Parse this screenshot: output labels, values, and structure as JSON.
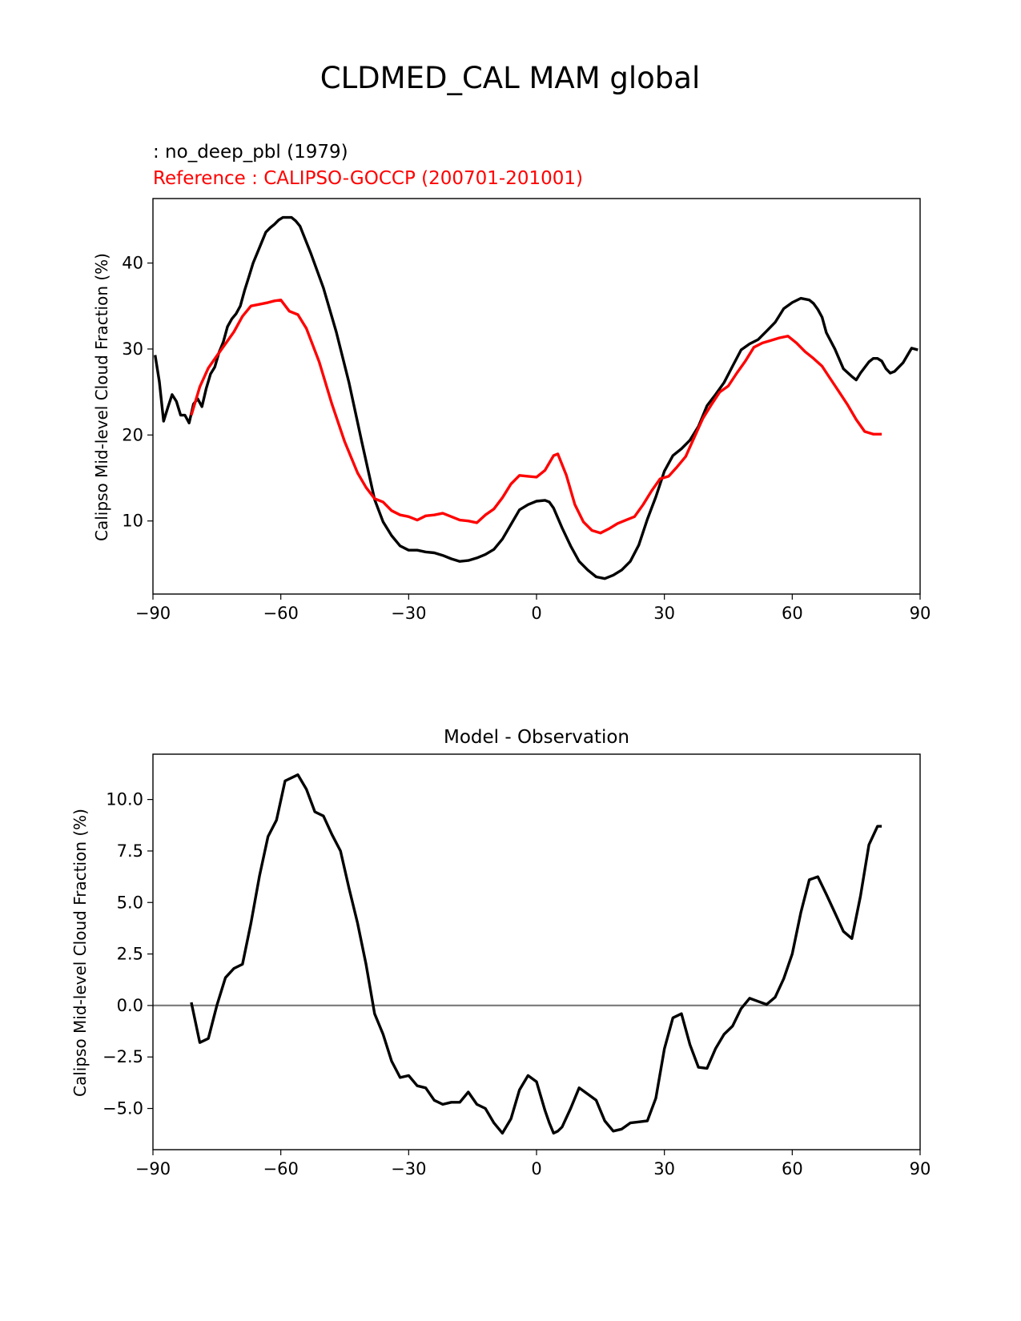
{
  "figure": {
    "title": "CLDMED_CAL MAM global",
    "model_label": " : no_deep_pbl (1979)",
    "reference_label": "Reference : CALIPSO-GOCCP (200701-201001)",
    "colors": {
      "model": "#000000",
      "reference": "#ff0000",
      "zero_line": "#808080"
    }
  },
  "chart_data": [
    {
      "type": "line",
      "title": "",
      "xlabel": "",
      "ylabel": "Calipso Mid-level Cloud Fraction (%)",
      "xlim": [
        -90,
        90
      ],
      "ylim": [
        1.5,
        47.5
      ],
      "xticks": [
        -90,
        -60,
        -30,
        0,
        30,
        60,
        90
      ],
      "xtick_labels": [
        "−90",
        "−60",
        "−30",
        "0",
        "30",
        "60",
        "90"
      ],
      "yticks": [
        10,
        20,
        30,
        40
      ],
      "ytick_labels": [
        "10",
        "20",
        "30",
        "40"
      ],
      "series": [
        {
          "name": "no_deep_pbl (1979)",
          "color": "#000000",
          "x": [
            -89.5,
            -88.5,
            -87.5,
            -86.5,
            -85.5,
            -84.5,
            -83.5,
            -82.5,
            -81.5,
            -80.5,
            -79.5,
            -78.5,
            -77.5,
            -76.5,
            -75.5,
            -74.5,
            -73.5,
            -72.5,
            -71.5,
            -70.5,
            -69.5,
            -68.5,
            -67.5,
            -66.5,
            -65.5,
            -64.5,
            -63.5,
            -62.5,
            -61.5,
            -60.5,
            -59.5,
            -58.5,
            -57.5,
            -56.5,
            -55.5,
            -53,
            -50,
            -47,
            -44,
            -41,
            -38,
            -36,
            -34,
            -32,
            -30,
            -28,
            -26,
            -24,
            -22,
            -20,
            -18,
            -16,
            -14,
            -12,
            -10,
            -8,
            -6,
            -4,
            -2,
            0,
            2,
            3,
            4,
            6,
            8,
            10,
            12,
            14,
            16,
            18,
            20,
            22,
            24,
            26,
            28,
            30,
            32,
            34,
            36,
            38,
            40,
            42,
            44,
            46,
            48,
            50,
            52,
            54,
            56,
            58,
            60,
            62,
            64,
            65,
            66,
            67,
            68,
            70,
            72,
            74,
            75,
            76,
            78,
            79,
            80,
            81,
            82,
            83,
            84,
            86,
            88,
            89.5
          ],
          "values": [
            29.3,
            26.2,
            21.6,
            23.2,
            24.7,
            23.9,
            22.3,
            22.3,
            21.4,
            23.6,
            24.2,
            23.3,
            25.4,
            27.1,
            27.9,
            29.6,
            30.8,
            32.6,
            33.5,
            34.1,
            35.0,
            36.8,
            38.4,
            40.0,
            41.2,
            42.4,
            43.6,
            44.1,
            44.5,
            45.0,
            45.3,
            45.3,
            45.3,
            44.9,
            44.3,
            41.2,
            37.1,
            32.0,
            26.1,
            19.2,
            12.5,
            9.9,
            8.3,
            7.1,
            6.6,
            6.6,
            6.4,
            6.3,
            6.0,
            5.6,
            5.3,
            5.4,
            5.7,
            6.1,
            6.7,
            7.9,
            9.6,
            11.3,
            11.9,
            12.3,
            12.4,
            12.2,
            11.5,
            9.2,
            7.1,
            5.3,
            4.3,
            3.5,
            3.3,
            3.7,
            4.3,
            5.3,
            7.2,
            10.2,
            12.8,
            15.8,
            17.6,
            18.4,
            19.4,
            21.0,
            23.4,
            24.7,
            26.1,
            28.0,
            29.9,
            30.6,
            31.1,
            32.1,
            33.1,
            34.7,
            35.4,
            35.9,
            35.7,
            35.3,
            34.6,
            33.7,
            31.9,
            30.0,
            27.7,
            26.8,
            26.4,
            27.2,
            28.5,
            28.9,
            28.9,
            28.6,
            27.7,
            27.2,
            27.4,
            28.4,
            30.1,
            29.9
          ]
        },
        {
          "name": "CALIPSO-GOCCP (200701-201001)",
          "color": "#ff0000",
          "x": [
            -81,
            -79,
            -77,
            -75,
            -73,
            -71,
            -69,
            -67,
            -65,
            -63,
            -61.5,
            -60,
            -58,
            -56,
            -54,
            -51,
            -48,
            -45,
            -42,
            -40,
            -38,
            -36,
            -34,
            -32,
            -30,
            -28,
            -26,
            -24,
            -22,
            -20,
            -18,
            -16,
            -14,
            -12,
            -10,
            -8,
            -6,
            -4,
            -2,
            0,
            2,
            4,
            5,
            7,
            9,
            11,
            13,
            15,
            17,
            19,
            21,
            23,
            25,
            27,
            29,
            31,
            33,
            35,
            37,
            39,
            41,
            43,
            45,
            47,
            49,
            51,
            53,
            55,
            57,
            59,
            61,
            63,
            65,
            67,
            69,
            71,
            73,
            75,
            77,
            79,
            81
          ],
          "values": [
            22.3,
            25.6,
            27.8,
            29.2,
            30.6,
            32.0,
            33.8,
            35.0,
            35.2,
            35.4,
            35.6,
            35.7,
            34.4,
            34.0,
            32.4,
            28.5,
            23.6,
            19.2,
            15.6,
            13.9,
            12.6,
            12.2,
            11.2,
            10.7,
            10.5,
            10.1,
            10.6,
            10.7,
            10.9,
            10.5,
            10.1,
            10.0,
            9.8,
            10.7,
            11.4,
            12.7,
            14.3,
            15.3,
            15.2,
            15.1,
            15.9,
            17.6,
            17.8,
            15.3,
            11.9,
            9.9,
            8.9,
            8.6,
            9.1,
            9.7,
            10.1,
            10.5,
            11.9,
            13.5,
            14.9,
            15.2,
            16.3,
            17.5,
            19.7,
            21.9,
            23.5,
            25.0,
            25.7,
            27.2,
            28.6,
            30.2,
            30.7,
            31.0,
            31.3,
            31.5,
            30.7,
            29.7,
            28.9,
            28.0,
            26.5,
            25.0,
            23.5,
            21.8,
            20.4,
            20.1,
            20.1
          ]
        }
      ]
    },
    {
      "type": "line",
      "title": "Model - Observation",
      "xlabel": "",
      "ylabel": "Calipso Mid-level Cloud Fraction (%)",
      "xlim": [
        -90,
        90
      ],
      "ylim": [
        -7.0,
        12.2
      ],
      "xticks": [
        -90,
        -60,
        -30,
        0,
        30,
        60,
        90
      ],
      "xtick_labels": [
        "−90",
        "−60",
        "−30",
        "0",
        "30",
        "60",
        "90"
      ],
      "yticks": [
        -5.0,
        -2.5,
        0.0,
        2.5,
        5.0,
        7.5,
        10.0
      ],
      "ytick_labels": [
        "−5.0",
        "−2.5",
        "0.0",
        "2.5",
        "5.0",
        "7.5",
        "10.0"
      ],
      "reference_line": 0.0,
      "series": [
        {
          "name": "Model - Observation",
          "color": "#000000",
          "x": [
            -81,
            -79,
            -77,
            -75,
            -73,
            -71,
            -69,
            -67,
            -65,
            -63,
            -61,
            -59,
            -56,
            -54,
            -52,
            -50,
            -48,
            -46,
            -44,
            -42,
            -40,
            -38,
            -36,
            -34,
            -32,
            -30,
            -28,
            -26,
            -24,
            -22,
            -20,
            -18,
            -16,
            -14,
            -12,
            -10,
            -8,
            -6,
            -4,
            -2,
            0,
            2,
            3,
            4,
            5,
            6,
            8,
            10,
            12,
            14,
            16,
            18,
            20,
            22,
            24,
            26,
            28,
            30,
            32,
            34,
            36,
            38,
            40,
            42,
            44,
            46,
            48,
            50,
            52,
            54,
            56,
            58,
            60,
            62,
            64,
            66,
            68,
            70,
            72,
            74,
            76,
            78,
            80,
            81
          ],
          "values": [
            0.15,
            -1.8,
            -1.6,
            0.0,
            1.35,
            1.8,
            2.0,
            4.0,
            6.3,
            8.2,
            9.0,
            10.9,
            11.2,
            10.5,
            9.4,
            9.2,
            8.3,
            7.5,
            5.7,
            4.0,
            2.0,
            -0.4,
            -1.4,
            -2.7,
            -3.5,
            -3.4,
            -3.9,
            -4.0,
            -4.6,
            -4.8,
            -4.7,
            -4.7,
            -4.2,
            -4.8,
            -5.0,
            -5.7,
            -6.2,
            -5.5,
            -4.1,
            -3.4,
            -3.7,
            -5.1,
            -5.7,
            -6.2,
            -6.1,
            -5.9,
            -5.0,
            -4.0,
            -4.3,
            -4.6,
            -5.6,
            -6.1,
            -6.0,
            -5.7,
            -5.65,
            -5.6,
            -4.5,
            -2.1,
            -0.6,
            -0.4,
            -1.9,
            -3.0,
            -3.05,
            -2.1,
            -1.4,
            -1.0,
            -0.15,
            0.35,
            0.2,
            0.05,
            0.4,
            1.3,
            2.5,
            4.5,
            6.1,
            6.25,
            5.4,
            4.5,
            3.6,
            3.25,
            5.3,
            7.8,
            8.7,
            8.7
          ]
        }
      ]
    }
  ]
}
